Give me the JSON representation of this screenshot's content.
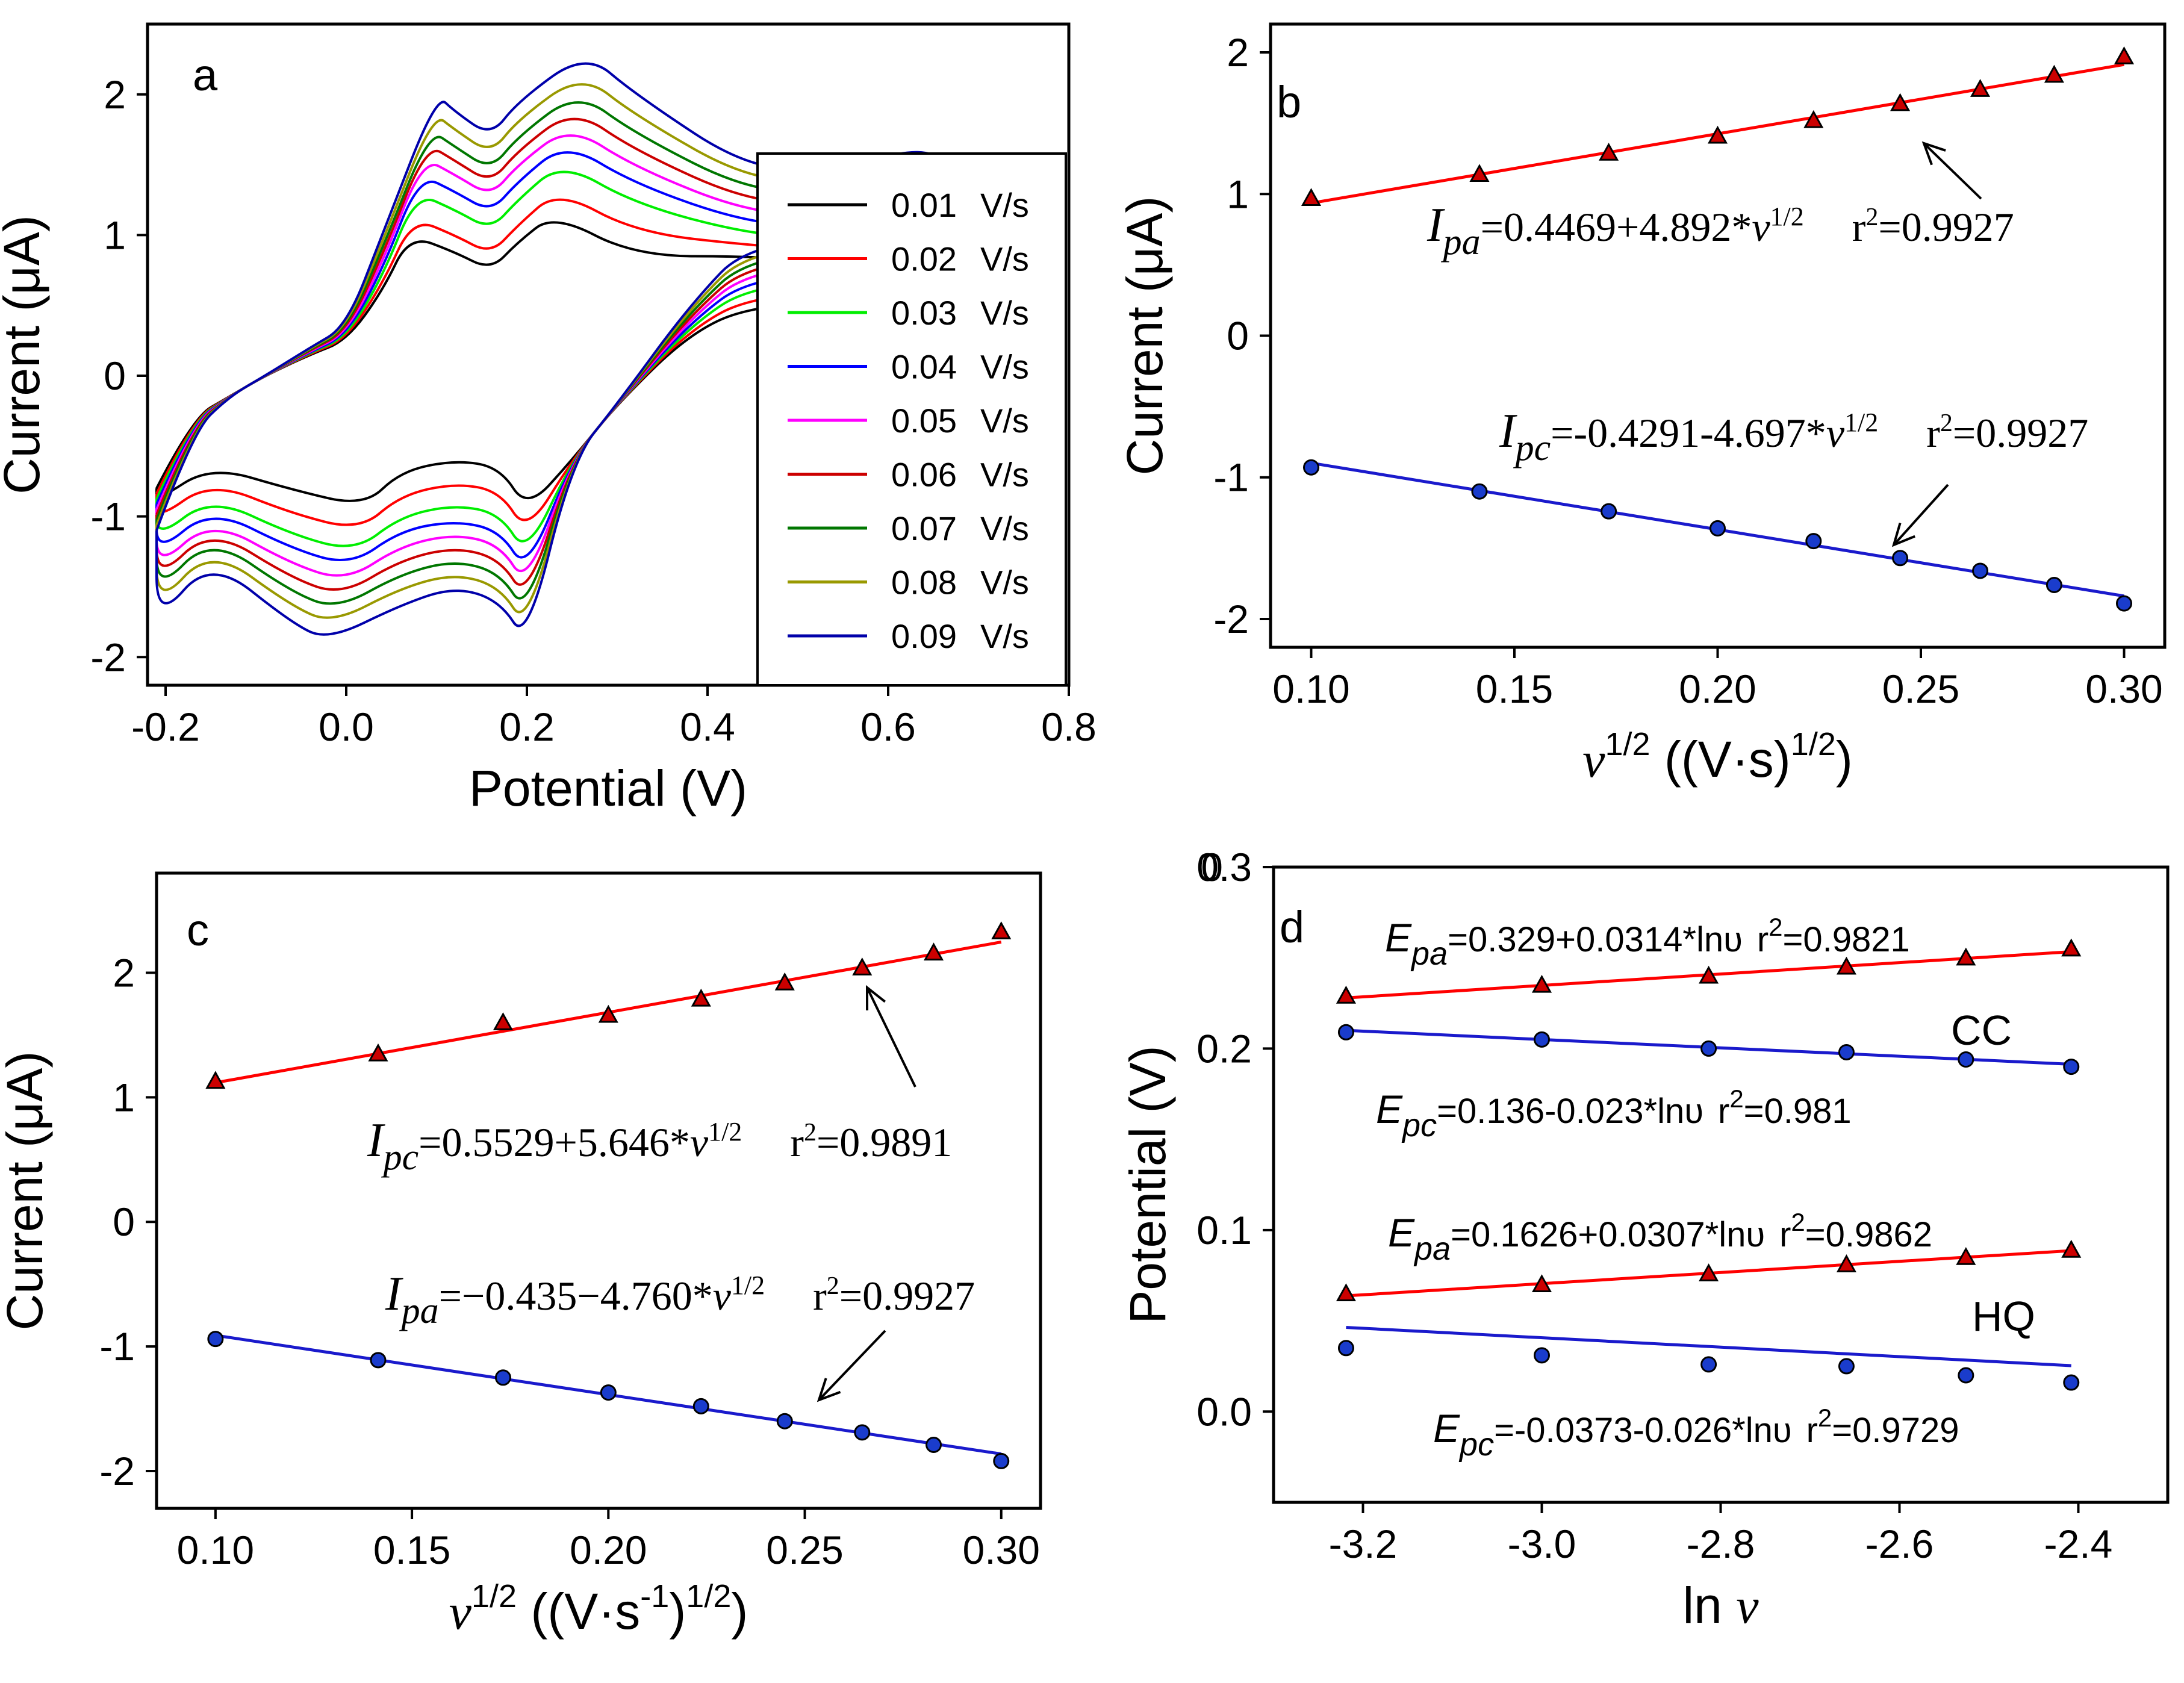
{
  "figure": {
    "description_free": true,
    "colors": {
      "anodic": "#ff0000",
      "cathodic": "#1a1acc",
      "marker_red": "#cc0000",
      "marker_blue": "#1a3ccc"
    }
  },
  "chart_data": [
    {
      "panel": "a",
      "type": "line",
      "title": "",
      "xlabel": "Potential (V)",
      "ylabel": "Current (μA)",
      "xlim": [
        -0.22,
        0.8
      ],
      "ylim": [
        -2.2,
        2.5
      ],
      "xticks": [
        "-0.2",
        "0.0",
        "0.2",
        "0.4",
        "0.6",
        "0.8"
      ],
      "xtick_values": [
        -0.2,
        0.0,
        0.2,
        0.4,
        0.6,
        0.8
      ],
      "yticks": [
        "-2",
        "-1",
        "0",
        "1",
        "2"
      ],
      "ytick_values": [
        -2,
        -1,
        0,
        1,
        2
      ],
      "legend_placement": "right",
      "series": [
        {
          "name": "0.01",
          "unit": "V/s",
          "color": "#000000",
          "peaks": {
            "ox1": 1.0,
            "ox2": 1.15,
            "red1": -0.93,
            "red2": -0.95,
            "ic": -0.64,
            "end": 0.55
          }
        },
        {
          "name": "0.02",
          "unit": "V/s",
          "color": "#ff0000",
          "peaks": {
            "ox1": 1.12,
            "ox2": 1.32,
            "red1": -1.1,
            "red2": -1.12,
            "ic": -0.75,
            "end": 0.62
          }
        },
        {
          "name": "0.03",
          "unit": "V/s",
          "color": "#00ee00",
          "peaks": {
            "ox1": 1.3,
            "ox2": 1.52,
            "red1": -1.25,
            "red2": -1.28,
            "ic": -0.86,
            "end": 0.7
          }
        },
        {
          "name": "0.04",
          "unit": "V/s",
          "color": "#0000ff",
          "peaks": {
            "ox1": 1.43,
            "ox2": 1.66,
            "red1": -1.35,
            "red2": -1.4,
            "ic": -0.94,
            "end": 0.76
          }
        },
        {
          "name": "0.05",
          "unit": "V/s",
          "color": "#ff00ff",
          "peaks": {
            "ox1": 1.55,
            "ox2": 1.78,
            "red1": -1.46,
            "red2": -1.5,
            "ic": -1.02,
            "end": 0.82
          }
        },
        {
          "name": "0.06",
          "unit": "V/s",
          "color": "#cc0000",
          "peaks": {
            "ox1": 1.65,
            "ox2": 1.9,
            "red1": -1.56,
            "red2": -1.6,
            "ic": -1.08,
            "end": 0.87
          }
        },
        {
          "name": "0.07",
          "unit": "V/s",
          "color": "#007700",
          "peaks": {
            "ox1": 1.75,
            "ox2": 2.02,
            "red1": -1.66,
            "red2": -1.7,
            "ic": -1.14,
            "end": 0.92
          }
        },
        {
          "name": "0.08",
          "unit": "V/s",
          "color": "#999900",
          "peaks": {
            "ox1": 1.87,
            "ox2": 2.15,
            "red1": -1.76,
            "red2": -1.8,
            "ic": -1.22,
            "end": 0.97
          }
        },
        {
          "name": "0.09",
          "unit": "V/s",
          "color": "#0000aa",
          "peaks": {
            "ox1": 2.0,
            "ox2": 2.3,
            "red1": -1.88,
            "red2": -1.9,
            "ic": -1.3,
            "end": 1.02
          }
        }
      ]
    },
    {
      "panel": "b",
      "type": "scatter",
      "xlabel": "v^1/2 ((V·s)^1/2)",
      "ylabel": "Current (μA)",
      "xlim": [
        0.09,
        0.31
      ],
      "ylim": [
        -2.2,
        2.2
      ],
      "xticks": [
        "0.10",
        "0.15",
        "0.20",
        "0.25",
        "0.30"
      ],
      "xtick_values": [
        0.1,
        0.15,
        0.2,
        0.25,
        0.3
      ],
      "yticks": [
        "-2",
        "-1",
        "0",
        "1",
        "2"
      ],
      "ytick_values": [
        -2,
        -1,
        0,
        1,
        2
      ],
      "x": [
        0.1,
        0.1414,
        0.1732,
        0.2,
        0.2236,
        0.2449,
        0.2646,
        0.2828,
        0.3
      ],
      "series": [
        {
          "name": "Ipa",
          "marker": "triangle",
          "color": "#ff0000",
          "values": [
            0.97,
            1.14,
            1.29,
            1.41,
            1.52,
            1.64,
            1.74,
            1.84,
            1.97
          ],
          "fit": [
            0.4469,
            4.892
          ]
        },
        {
          "name": "Ipc",
          "marker": "circle",
          "color": "#1a1acc",
          "values": [
            -0.93,
            -1.1,
            -1.24,
            -1.36,
            -1.45,
            -1.57,
            -1.66,
            -1.76,
            -1.89
          ],
          "fit": [
            -0.4291,
            -4.697
          ]
        }
      ],
      "annotations": [
        {
          "var": "I",
          "sub": "pa",
          "rest": "=0.4469+4.892*",
          "v": "v",
          "sup": "1/2",
          "r_label": "r",
          "r_sup": "2",
          "r_value": "=0.9927"
        },
        {
          "var": "I",
          "sub": "pc",
          "rest": "=-0.4291-4.697*",
          "v": "v",
          "sup": "1/2",
          "r_label": "r",
          "r_sup": "2",
          "r_value": "=0.9927"
        }
      ]
    },
    {
      "panel": "c",
      "type": "scatter",
      "xlabel": "v^1/2 ((V·s^-1)^1/2)",
      "ylabel": "Current (μA)",
      "xlim": [
        0.085,
        0.31
      ],
      "ylim": [
        -2.3,
        2.8
      ],
      "xticks": [
        "0.10",
        "0.15",
        "0.20",
        "0.25",
        "0.30"
      ],
      "xtick_values": [
        0.1,
        0.15,
        0.2,
        0.25,
        0.3
      ],
      "yticks": [
        "-2",
        "-1",
        "0",
        "1",
        "2"
      ],
      "ytick_values": [
        -2,
        -1,
        0,
        1,
        2
      ],
      "x": [
        0.1,
        0.1414,
        0.1732,
        0.2,
        0.2236,
        0.2449,
        0.2646,
        0.2828,
        0.3
      ],
      "series": [
        {
          "name": "Ipc",
          "marker": "triangle",
          "color": "#ff0000",
          "values": [
            1.13,
            1.35,
            1.6,
            1.66,
            1.79,
            1.92,
            2.04,
            2.16,
            2.33
          ],
          "fit": [
            0.5529,
            5.646
          ]
        },
        {
          "name": "Ipa",
          "marker": "circle",
          "color": "#1a1acc",
          "values": [
            -0.94,
            -1.11,
            -1.25,
            -1.37,
            -1.48,
            -1.6,
            -1.69,
            -1.79,
            -1.92
          ],
          "fit": [
            -0.435,
            -4.76
          ]
        }
      ],
      "annotations": [
        {
          "var": "I",
          "sub": "pc",
          "rest": "=0.5529+5.646*",
          "v": "v",
          "sup": "1/2",
          "r_label": "r",
          "r_sup": "2",
          "r_value": "=0.9891"
        },
        {
          "var": "I",
          "sub": "pa",
          "rest": "=−0.435−4.760*",
          "v": "v",
          "sup": "1/2",
          "r_label": "r",
          "r_sup": "2",
          "r_value": "=0.9927"
        }
      ]
    },
    {
      "panel": "d",
      "type": "scatter",
      "xlabel": "ln v",
      "ylabel": "Potential (V)",
      "xlim": [
        -3.3,
        -2.3
      ],
      "ylim": [
        -0.05,
        0.3
      ],
      "xticks": [
        "-3.2",
        "-3.0",
        "-2.8",
        "-2.6",
        "-2.4"
      ],
      "xtick_values": [
        -3.2,
        -3.0,
        -2.8,
        -2.6,
        -2.4
      ],
      "yticks": [
        "0.0",
        "0.1",
        "0.2",
        "0.3"
      ],
      "ytick_values": [
        0.0,
        0.1,
        0.2,
        0.3
      ],
      "top_tick_overlay": "0",
      "x": [
        -3.2189,
        -3.0,
        -2.8134,
        -2.6593,
        -2.5257,
        -2.4079
      ],
      "series": [
        {
          "name": "CC Epa",
          "marker": "triangle",
          "color": "#ff0000",
          "values": [
            0.229,
            0.235,
            0.24,
            0.245,
            0.25,
            0.255
          ],
          "fit": [
            0.329,
            0.0314
          ]
        },
        {
          "name": "CC Epc",
          "marker": "circle",
          "color": "#1a1acc",
          "values": [
            0.209,
            0.205,
            0.2,
            0.198,
            0.194,
            0.19
          ],
          "fit": [
            0.136,
            -0.023
          ]
        },
        {
          "name": "HQ Epa",
          "marker": "triangle",
          "color": "#ff0000",
          "values": [
            0.065,
            0.07,
            0.076,
            0.081,
            0.085,
            0.089
          ],
          "fit": [
            0.1626,
            0.0307
          ]
        },
        {
          "name": "HQ Epc",
          "marker": "circle",
          "color": "#1a1acc",
          "values": [
            0.035,
            0.031,
            0.026,
            0.025,
            0.02,
            0.016
          ],
          "fit": [
            -0.0373,
            -0.026
          ]
        }
      ],
      "compounds": [
        "CC",
        "HQ"
      ],
      "annotations": [
        {
          "var": "E",
          "sub": "pa",
          "rest": "=0.329+0.0314*lnυ",
          "r_label": "r",
          "r_sup": "2",
          "r_value": "=0.9821"
        },
        {
          "var": "E",
          "sub": "pc",
          "rest": "=0.136-0.023*lnυ",
          "r_label": "r",
          "r_sup": "2",
          "r_value": "=0.981"
        },
        {
          "var": "E",
          "sub": "pa",
          "rest": "=0.1626+0.0307*lnυ",
          "r_label": "r",
          "r_sup": "2",
          "r_value": "=0.9862"
        },
        {
          "var": "E",
          "sub": "pc",
          "rest": "=-0.0373-0.026*lnυ",
          "r_label": "r",
          "r_sup": "2",
          "r_value": "=0.9729"
        }
      ]
    }
  ]
}
